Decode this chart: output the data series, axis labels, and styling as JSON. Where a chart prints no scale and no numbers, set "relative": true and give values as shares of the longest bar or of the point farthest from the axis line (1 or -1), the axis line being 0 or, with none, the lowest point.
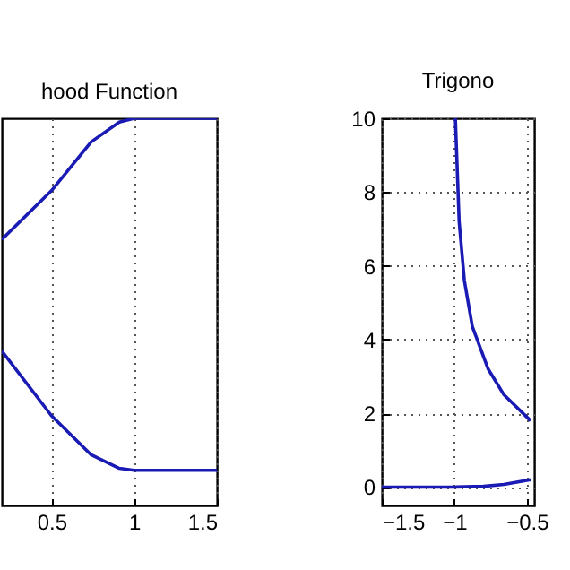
{
  "chart_data": [
    {
      "type": "line",
      "title": "hood Function",
      "relative": true,
      "xlim": [
        0.2,
        1.5
      ],
      "xticks": [
        0.5,
        1,
        1.5
      ],
      "grid": "x",
      "legend": false,
      "series": [
        {
          "color": "#1a1ab4",
          "x": [
            0.2,
            0.5,
            0.74,
            0.91,
            1,
            1.5
          ],
          "values": [
            0.687,
            0.813,
            0.939,
            0.99,
            1,
            1
          ]
        },
        {
          "color": "#1a1ab4",
          "x": [
            0.2,
            0.5,
            0.74,
            0.91,
            1,
            1.5
          ],
          "values": [
            0.399,
            0.232,
            0.131,
            0.096,
            0.091,
            0.091
          ]
        }
      ]
    },
    {
      "type": "line",
      "title": "Trigono",
      "xlim": [
        -1.5,
        -0.45
      ],
      "xticks": [
        {
          "value": -1.5,
          "label": "−1.5"
        },
        {
          "value": -1,
          "label": "−1"
        },
        {
          "value": -0.5,
          "label": "−0.5"
        }
      ],
      "ylim": [
        -0.5,
        10
      ],
      "yticks": [
        0,
        2,
        4,
        6,
        8,
        10
      ],
      "grid": true,
      "legend": false,
      "series": [
        {
          "color": "#1a1ab4",
          "x": [
            -0.993,
            -0.967,
            -0.931,
            -0.876,
            -0.767,
            -0.658,
            -0.475
          ],
          "values": [
            10,
            7.2,
            5.6,
            4.35,
            3.2,
            2.5,
            1.8
          ]
        },
        {
          "color": "#1a1ab4",
          "x": [
            -1.5,
            -1,
            -0.8,
            -0.658,
            -0.475
          ],
          "values": [
            0,
            0,
            0.02,
            0.07,
            0.2
          ]
        }
      ]
    }
  ]
}
